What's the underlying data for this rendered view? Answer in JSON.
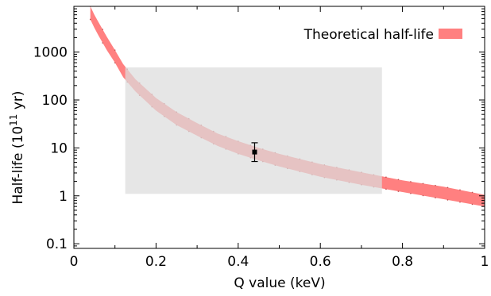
{
  "chart_data": {
    "type": "line",
    "x_axis": {
      "label": "Q value (keV)",
      "range": [
        0,
        1
      ],
      "scale": "linear",
      "ticks": [
        0,
        0.2,
        0.4,
        0.6,
        0.8,
        1
      ],
      "tick_labels": [
        "0",
        "0.2",
        "0.4",
        "0.6",
        "0.8",
        "1"
      ]
    },
    "y_axis": {
      "label_prefix": "Half-life (10",
      "label_superscript": "11",
      "label_suffix": " yr)",
      "range": [
        0.08,
        9000
      ],
      "scale": "log",
      "ticks": [
        0.1,
        1,
        10,
        100,
        1000
      ],
      "tick_labels": [
        "0.1",
        "1",
        "10",
        "100",
        "1000"
      ]
    },
    "grid": false,
    "legend": {
      "placement": "top-right"
    },
    "series": [
      {
        "name": "Theoretical half-life",
        "type": "band",
        "color": "#ff8080",
        "x": [
          0.04,
          0.05,
          0.06,
          0.08,
          0.1,
          0.12,
          0.15,
          0.2,
          0.25,
          0.3,
          0.35,
          0.4,
          0.45,
          0.5,
          0.6,
          0.7,
          0.8,
          0.9,
          1.0
        ],
        "lower": [
          4800,
          3200,
          2200,
          1100,
          600,
          300,
          150,
          60,
          30,
          18,
          11,
          7.5,
          5.5,
          4.1,
          2.5,
          1.7,
          1.2,
          0.85,
          0.6
        ],
        "upper": [
          9000,
          6000,
          4200,
          2100,
          1100,
          560,
          270,
          110,
          56,
          33,
          20,
          13.8,
          10,
          7.5,
          4.6,
          3.1,
          2.1,
          1.55,
          1.05
        ]
      }
    ],
    "regions": [
      {
        "type": "rectangle",
        "color": "#dcdcdc",
        "x_range": [
          0.125,
          0.75
        ],
        "y_range": [
          1.1,
          480
        ]
      }
    ],
    "points": [
      {
        "x": 0.44,
        "y": 8.2,
        "y_err_low": 5.2,
        "y_err_high": 12.8,
        "x_err": 0.008
      }
    ]
  }
}
